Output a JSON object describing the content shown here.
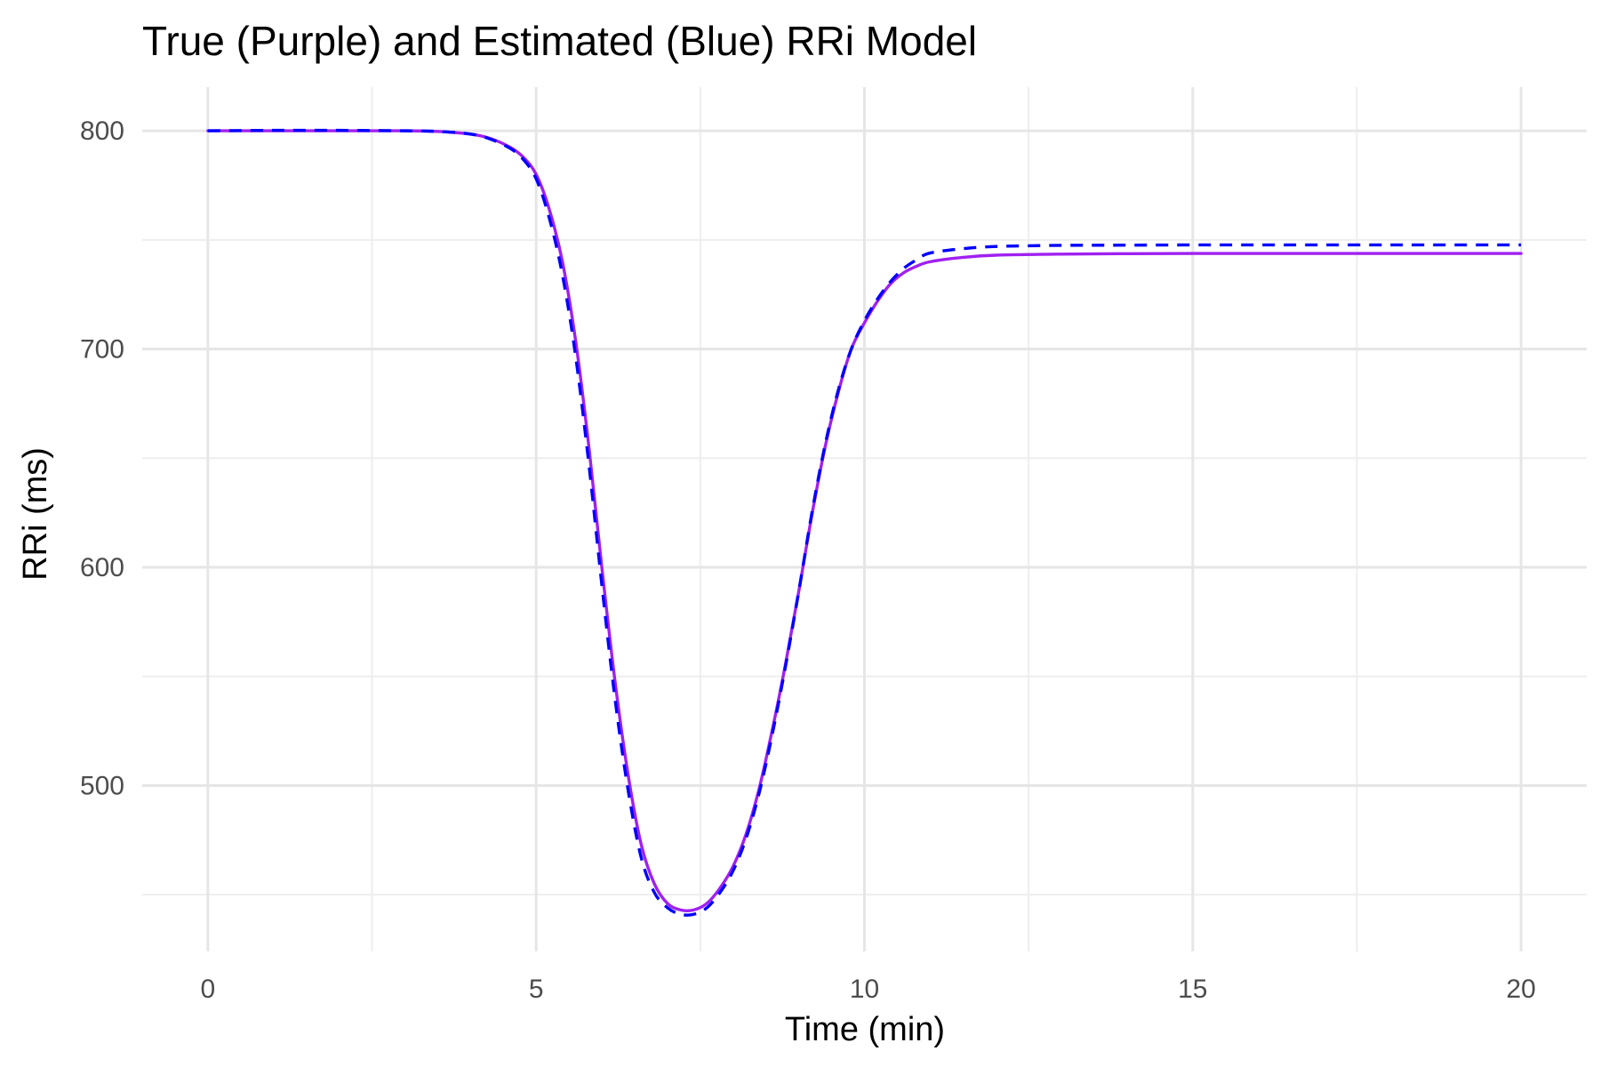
{
  "chart_data": {
    "type": "line",
    "title": "True (Purple) and Estimated (Blue) RRi Model",
    "xlabel": "Time (min)",
    "ylabel": "RRi (ms)",
    "xlim": [
      -1,
      21
    ],
    "ylim": [
      424,
      820
    ],
    "x_ticks": [
      0,
      5,
      10,
      15,
      20
    ],
    "x_tick_labels": [
      "0",
      "5",
      "10",
      "15",
      "20"
    ],
    "x_minor_ticks": [
      2.5,
      7.5,
      12.5,
      17.5
    ],
    "y_ticks": [
      500,
      600,
      700,
      800
    ],
    "y_tick_labels": [
      "500",
      "600",
      "700",
      "800"
    ],
    "y_minor_ticks": [
      450,
      550,
      650,
      750
    ],
    "grid": true,
    "legend": "none",
    "series": [
      {
        "color": "#a020f0",
        "line_style": "solid",
        "x": [
          0,
          1,
          2,
          3,
          3.5,
          4,
          4.3,
          4.6,
          4.8,
          5,
          5.2,
          5.4,
          5.6,
          5.8,
          6,
          6.2,
          6.4,
          6.6,
          6.8,
          7,
          7.2,
          7.4,
          7.6,
          7.8,
          8,
          8.2,
          8.4,
          8.6,
          8.8,
          9,
          9.2,
          9.4,
          9.6,
          9.8,
          10,
          10.2,
          10.4,
          10.6,
          10.8,
          11,
          11.5,
          12,
          13,
          14,
          15,
          16,
          18,
          20
        ],
        "values": [
          800,
          800,
          800,
          800,
          799.7,
          798.5,
          796.5,
          792.5,
          788,
          780,
          764,
          740,
          704,
          656,
          600,
          548,
          505,
          473,
          455,
          446,
          443,
          443,
          446,
          453,
          463,
          478,
          499,
          526,
          556,
          589,
          624,
          655,
          680,
          700,
          712,
          722,
          730,
          735,
          738,
          740,
          742,
          743,
          743.5,
          743.7,
          743.8,
          743.8,
          743.8,
          743.8
        ]
      },
      {
        "color": "#0000ff",
        "line_style": "dashed",
        "x": [
          0,
          1,
          2,
          3,
          3.5,
          4,
          4.3,
          4.6,
          4.8,
          5,
          5.2,
          5.4,
          5.6,
          5.8,
          6,
          6.2,
          6.4,
          6.6,
          6.8,
          7,
          7.2,
          7.4,
          7.6,
          7.8,
          8,
          8.2,
          8.4,
          8.6,
          8.8,
          9,
          9.2,
          9.4,
          9.6,
          9.8,
          10,
          10.2,
          10.4,
          10.6,
          10.8,
          11,
          11.5,
          12,
          13,
          14,
          15,
          16,
          18,
          20
        ],
        "values": [
          800,
          800.2,
          800.2,
          800,
          799.7,
          798.5,
          796.2,
          792,
          787,
          778,
          760,
          734,
          697,
          648,
          592,
          540,
          498,
          467,
          451,
          444,
          441,
          441,
          444,
          451,
          461,
          476,
          497,
          524,
          555,
          589,
          625,
          656,
          681,
          700,
          713,
          723,
          731,
          737,
          741,
          744,
          746,
          747,
          747.5,
          747.6,
          747.7,
          747.7,
          747.7,
          747.7
        ]
      }
    ]
  }
}
